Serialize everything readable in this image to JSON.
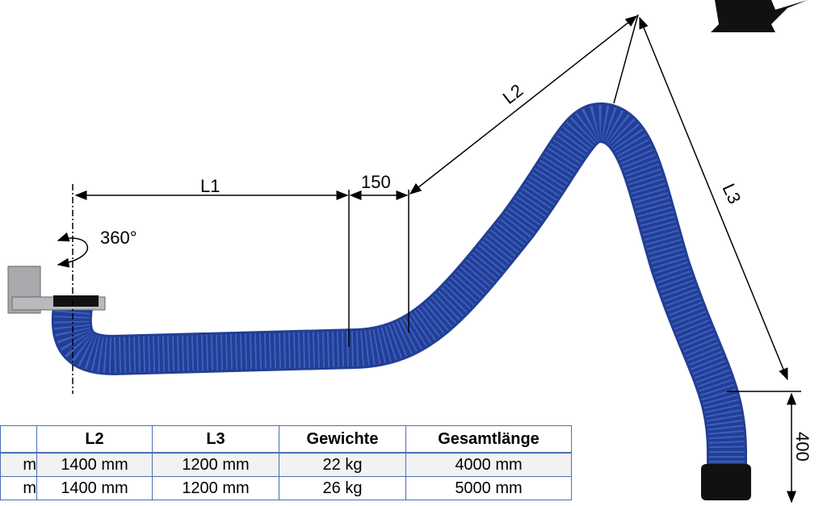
{
  "labels": {
    "l1": "L1",
    "offset": "150",
    "l2": "L2",
    "l3": "L3",
    "rotation": "360°",
    "drop": "400"
  },
  "table": {
    "header": [
      "L2",
      "L3",
      "Gewichte",
      "Gesamtlänge"
    ],
    "rows": [
      [
        "m",
        "1400 mm",
        "1200 mm",
        "22 kg",
        "4000 mm"
      ],
      [
        "m",
        "1400 mm",
        "1200 mm",
        "26 kg",
        "5000 mm"
      ]
    ]
  }
}
